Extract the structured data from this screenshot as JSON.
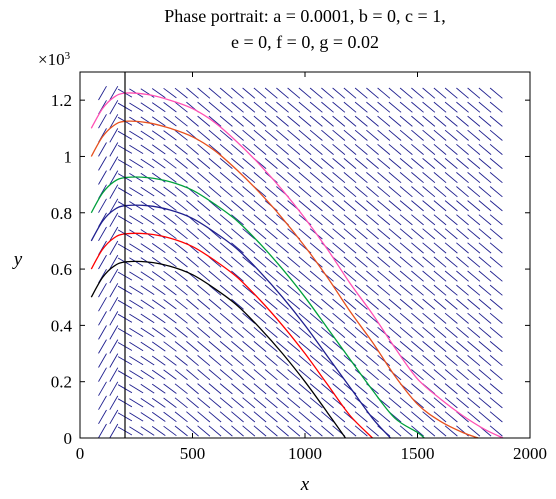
{
  "chart_data": {
    "type": "line",
    "title_line1": "Phase portrait: a = 0.0001, b = 0, c = 1,",
    "title_line2": "e = 0, f = 0, g = 0.02",
    "xlabel": "x",
    "ylabel": "y",
    "y_multiplier": "×10",
    "y_multiplier_exp": "3",
    "xlim": [
      0,
      2000
    ],
    "ylim": [
      0,
      1.3
    ],
    "x_ticks": [
      0,
      500,
      1000,
      1500,
      2000
    ],
    "x_tick_labels": [
      "0",
      "500",
      "1000",
      "1500",
      "2000"
    ],
    "y_ticks": [
      0,
      0.2,
      0.4,
      0.6,
      0.8,
      1,
      1.2
    ],
    "y_tick_labels": [
      "0",
      "0.2",
      "0.4",
      "0.6",
      "0.8",
      "1",
      "1.2"
    ],
    "vertical_line_x": 200,
    "grid": false,
    "direction_field": {
      "x_from": 100,
      "x_to": 1850,
      "x_step": 50,
      "y_from": 0.025,
      "y_to": 1.225,
      "y_step": 0.05,
      "color": "#1f1f8f"
    },
    "series": [
      {
        "color": "#000000",
        "values": [
          [
            50,
            0.5
          ],
          [
            100,
            0.57
          ],
          [
            150,
            0.61
          ],
          [
            200,
            0.625
          ],
          [
            300,
            0.625
          ],
          [
            400,
            0.61
          ],
          [
            500,
            0.58
          ],
          [
            600,
            0.53
          ],
          [
            700,
            0.47
          ],
          [
            800,
            0.39
          ],
          [
            900,
            0.3
          ],
          [
            1000,
            0.2
          ],
          [
            1100,
            0.09
          ],
          [
            1180,
            0.0
          ]
        ]
      },
      {
        "color": "#ff0000",
        "values": [
          [
            50,
            0.6
          ],
          [
            100,
            0.67
          ],
          [
            150,
            0.71
          ],
          [
            200,
            0.725
          ],
          [
            300,
            0.725
          ],
          [
            400,
            0.71
          ],
          [
            500,
            0.68
          ],
          [
            600,
            0.63
          ],
          [
            700,
            0.57
          ],
          [
            800,
            0.49
          ],
          [
            900,
            0.4
          ],
          [
            1000,
            0.3
          ],
          [
            1100,
            0.19
          ],
          [
            1200,
            0.08
          ],
          [
            1300,
            0.0
          ]
        ]
      },
      {
        "color": "#1f1f8f",
        "values": [
          [
            50,
            0.7
          ],
          [
            100,
            0.77
          ],
          [
            150,
            0.81
          ],
          [
            200,
            0.825
          ],
          [
            300,
            0.825
          ],
          [
            400,
            0.81
          ],
          [
            500,
            0.78
          ],
          [
            600,
            0.73
          ],
          [
            700,
            0.67
          ],
          [
            800,
            0.59
          ],
          [
            900,
            0.5
          ],
          [
            1000,
            0.4
          ],
          [
            1100,
            0.29
          ],
          [
            1200,
            0.18
          ],
          [
            1300,
            0.07
          ],
          [
            1380,
            0.0
          ]
        ]
      },
      {
        "color": "#00a03c",
        "values": [
          [
            50,
            0.8
          ],
          [
            100,
            0.87
          ],
          [
            150,
            0.91
          ],
          [
            200,
            0.925
          ],
          [
            300,
            0.925
          ],
          [
            400,
            0.91
          ],
          [
            500,
            0.88
          ],
          [
            600,
            0.83
          ],
          [
            700,
            0.77
          ],
          [
            800,
            0.69
          ],
          [
            900,
            0.6
          ],
          [
            1000,
            0.5
          ],
          [
            1100,
            0.39
          ],
          [
            1200,
            0.28
          ],
          [
            1300,
            0.17
          ],
          [
            1400,
            0.07
          ],
          [
            1500,
            0.02
          ],
          [
            1530,
            0.0
          ]
        ]
      },
      {
        "color": "#e6501e",
        "values": [
          [
            50,
            1.0
          ],
          [
            100,
            1.07
          ],
          [
            150,
            1.11
          ],
          [
            200,
            1.125
          ],
          [
            300,
            1.12
          ],
          [
            400,
            1.1
          ],
          [
            500,
            1.07
          ],
          [
            600,
            1.02
          ],
          [
            700,
            0.95
          ],
          [
            800,
            0.87
          ],
          [
            900,
            0.78
          ],
          [
            1000,
            0.68
          ],
          [
            1100,
            0.57
          ],
          [
            1200,
            0.45
          ],
          [
            1300,
            0.34
          ],
          [
            1400,
            0.22
          ],
          [
            1500,
            0.12
          ],
          [
            1600,
            0.06
          ],
          [
            1700,
            0.02
          ],
          [
            1770,
            0.0
          ]
        ]
      },
      {
        "color": "#ff50b4",
        "values": [
          [
            50,
            1.1
          ],
          [
            100,
            1.17
          ],
          [
            150,
            1.21
          ],
          [
            200,
            1.225
          ],
          [
            300,
            1.22
          ],
          [
            400,
            1.2
          ],
          [
            500,
            1.17
          ],
          [
            600,
            1.12
          ],
          [
            700,
            1.05
          ],
          [
            800,
            0.97
          ],
          [
            900,
            0.88
          ],
          [
            1000,
            0.78
          ],
          [
            1100,
            0.67
          ],
          [
            1200,
            0.55
          ],
          [
            1300,
            0.44
          ],
          [
            1400,
            0.32
          ],
          [
            1500,
            0.21
          ],
          [
            1600,
            0.14
          ],
          [
            1700,
            0.08
          ],
          [
            1800,
            0.03
          ],
          [
            1880,
            0.0
          ]
        ]
      }
    ]
  }
}
